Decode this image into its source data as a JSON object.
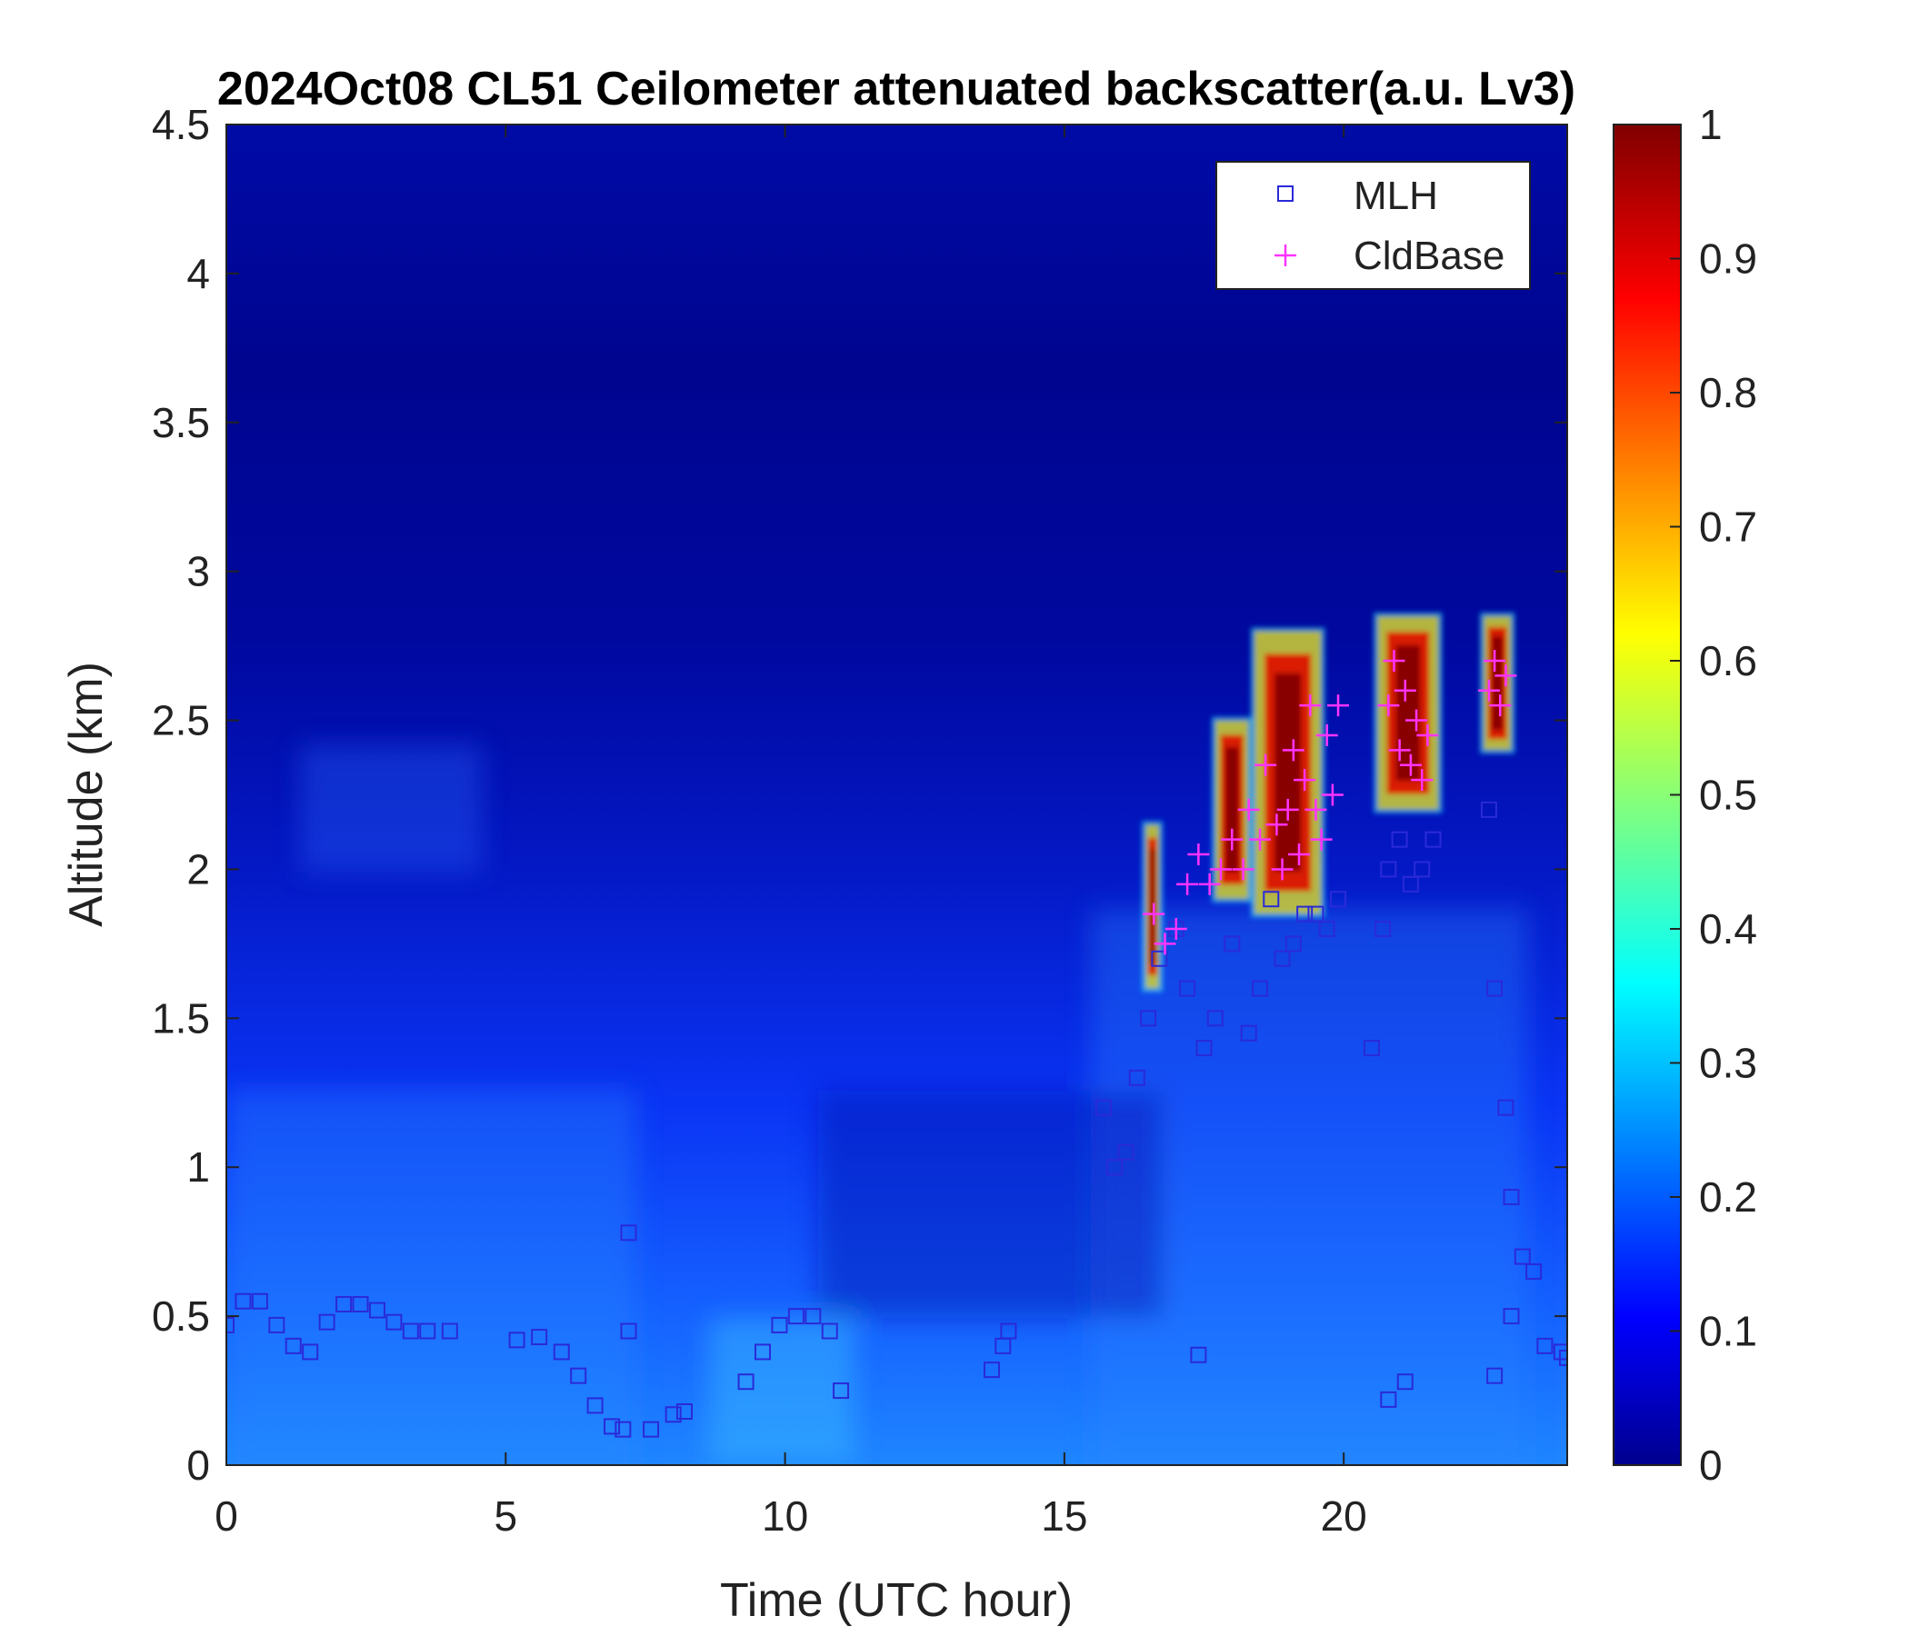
{
  "chart_data": {
    "type": "heatmap",
    "title": "2024Oct08 CL51 Ceilometer attenuated backscatter(a.u. Lv3)",
    "xlabel": "Time (UTC hour)",
    "ylabel": "Altitude (km)",
    "xlim": [
      0,
      24
    ],
    "ylim": [
      0,
      4.5
    ],
    "xticks": [
      0,
      5,
      10,
      15,
      20
    ],
    "yticks": [
      0,
      0.5,
      1,
      1.5,
      2,
      2.5,
      3,
      3.5,
      4,
      4.5
    ],
    "xtick_labels": [
      "0",
      "5",
      "10",
      "15",
      "20"
    ],
    "ytick_labels": [
      "0",
      "0.5",
      "1",
      "1.5",
      "2",
      "2.5",
      "3",
      "3.5",
      "4",
      "4.5"
    ],
    "colorbar": {
      "colormap": "jet",
      "range": [
        0,
        1
      ],
      "ticks": [
        0,
        0.1,
        0.2,
        0.3,
        0.4,
        0.5,
        0.6,
        0.7,
        0.8,
        0.9,
        1
      ],
      "tick_labels": [
        "0",
        "0.1",
        "0.2",
        "0.3",
        "0.4",
        "0.5",
        "0.6",
        "0.7",
        "0.8",
        "0.9",
        "1"
      ]
    },
    "legend": {
      "placement": "top-right",
      "entries": [
        {
          "label": "MLH",
          "marker": "square",
          "color": "#2a2ad8"
        },
        {
          "label": "CldBase",
          "marker": "plus",
          "color": "#ff33ff"
        }
      ]
    },
    "cloud_patches": [
      {
        "x": [
          16.45,
          16.7
        ],
        "y": [
          1.6,
          2.15
        ]
      },
      {
        "x": [
          17.7,
          18.3
        ],
        "y": [
          1.9,
          2.5
        ]
      },
      {
        "x": [
          18.4,
          19.6
        ],
        "y": [
          1.85,
          2.8
        ]
      },
      {
        "x": [
          20.6,
          21.7
        ],
        "y": [
          2.2,
          2.85
        ]
      },
      {
        "x": [
          22.5,
          23.0
        ],
        "y": [
          2.4,
          2.85
        ]
      }
    ],
    "series": [
      {
        "name": "MLH",
        "x": [
          0.0,
          0.3,
          0.6,
          0.9,
          1.2,
          1.5,
          1.8,
          2.1,
          2.4,
          2.7,
          3.0,
          3.3,
          3.6,
          4.0,
          5.2,
          5.6,
          6.0,
          6.3,
          6.6,
          6.9,
          7.1,
          7.6,
          8.0,
          8.2,
          9.3,
          9.6,
          9.9,
          10.2,
          10.5,
          10.8,
          11.0,
          7.2,
          7.2,
          13.7,
          13.9,
          14.0,
          15.7,
          15.9,
          16.1,
          16.3,
          16.5,
          16.7,
          17.0,
          17.2,
          17.5,
          17.7,
          18.0,
          18.3,
          18.5,
          18.7,
          18.9,
          19.1,
          19.3,
          19.5,
          19.7,
          19.9,
          20.5,
          20.7,
          20.8,
          21.0,
          21.2,
          21.4,
          21.6,
          22.6,
          22.7,
          22.9,
          23.0,
          23.2,
          23.4,
          23.6,
          23.9,
          24.0,
          17.4,
          20.8,
          21.1,
          22.7,
          23.0
        ],
        "y": [
          0.47,
          0.55,
          0.55,
          0.47,
          0.4,
          0.38,
          0.48,
          0.54,
          0.54,
          0.52,
          0.48,
          0.45,
          0.45,
          0.45,
          0.42,
          0.43,
          0.38,
          0.3,
          0.2,
          0.13,
          0.12,
          0.12,
          0.17,
          0.18,
          0.28,
          0.38,
          0.47,
          0.5,
          0.5,
          0.45,
          0.25,
          0.78,
          0.45,
          0.32,
          0.4,
          0.45,
          1.2,
          1.0,
          1.05,
          1.3,
          1.5,
          1.7,
          1.8,
          1.6,
          1.4,
          1.5,
          1.75,
          1.45,
          1.6,
          1.9,
          1.7,
          1.75,
          1.85,
          1.85,
          1.8,
          1.9,
          1.4,
          1.8,
          2.0,
          2.1,
          1.95,
          2.0,
          2.1,
          2.2,
          1.6,
          1.2,
          0.9,
          0.7,
          0.65,
          0.4,
          0.38,
          0.36,
          0.37,
          0.22,
          0.28,
          0.3,
          0.5
        ]
      },
      {
        "name": "CldBase",
        "x": [
          16.6,
          16.8,
          17.0,
          17.2,
          17.4,
          17.6,
          17.8,
          18.0,
          18.2,
          18.3,
          18.5,
          18.6,
          18.8,
          18.9,
          19.0,
          19.1,
          19.2,
          19.3,
          19.4,
          19.5,
          19.6,
          19.7,
          19.8,
          19.9,
          20.8,
          20.9,
          21.0,
          21.1,
          21.2,
          21.3,
          21.4,
          21.5,
          22.6,
          22.7,
          22.8,
          22.9
        ],
        "y": [
          1.85,
          1.75,
          1.8,
          1.95,
          2.05,
          1.95,
          2.0,
          2.1,
          2.0,
          2.2,
          2.1,
          2.35,
          2.15,
          2.0,
          2.2,
          2.4,
          2.05,
          2.3,
          2.55,
          2.2,
          2.1,
          2.45,
          2.25,
          2.55,
          2.55,
          2.7,
          2.4,
          2.6,
          2.35,
          2.5,
          2.3,
          2.45,
          2.6,
          2.7,
          2.55,
          2.65
        ]
      }
    ]
  }
}
